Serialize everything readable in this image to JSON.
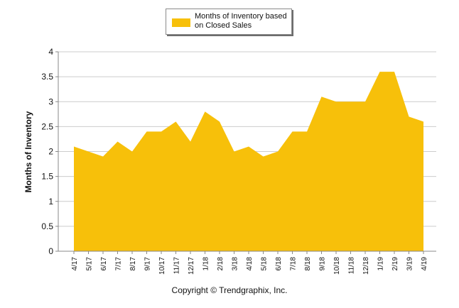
{
  "chart_data": {
    "type": "area",
    "title": "",
    "xlabel": "",
    "ylabel": "Months of Inventory",
    "ylim": [
      0,
      4
    ],
    "yticks": [
      "0",
      "0.5",
      "1",
      "1.5",
      "2",
      "2.5",
      "3",
      "3.5",
      "4"
    ],
    "grid": true,
    "legend_position": "top-center",
    "categories": [
      "4/17",
      "5/17",
      "6/17",
      "7/17",
      "8/17",
      "9/17",
      "10/17",
      "11/17",
      "12/17",
      "1/18",
      "2/18",
      "3/18",
      "4/18",
      "5/18",
      "6/18",
      "7/18",
      "8/18",
      "9/18",
      "10/18",
      "11/18",
      "12/18",
      "1/19",
      "2/19",
      "3/19",
      "4/19"
    ],
    "series": [
      {
        "name": "Months of Inventory based on Closed Sales",
        "color": "#F7C00A",
        "values": [
          2.1,
          2.0,
          1.9,
          2.2,
          2.0,
          2.4,
          2.4,
          2.6,
          2.2,
          2.8,
          2.6,
          2.0,
          2.1,
          1.9,
          2.0,
          2.4,
          2.4,
          3.1,
          3.0,
          3.0,
          3.0,
          3.6,
          3.6,
          2.7,
          2.6
        ]
      }
    ]
  },
  "legend": {
    "label": "Months of Inventory based on Closed Sales"
  },
  "footer": {
    "copyright": "Copyright © Trendgraphix, Inc."
  },
  "colors": {
    "fill": "#F7C00A",
    "grid": "#cccccc",
    "axis": "#888888"
  }
}
